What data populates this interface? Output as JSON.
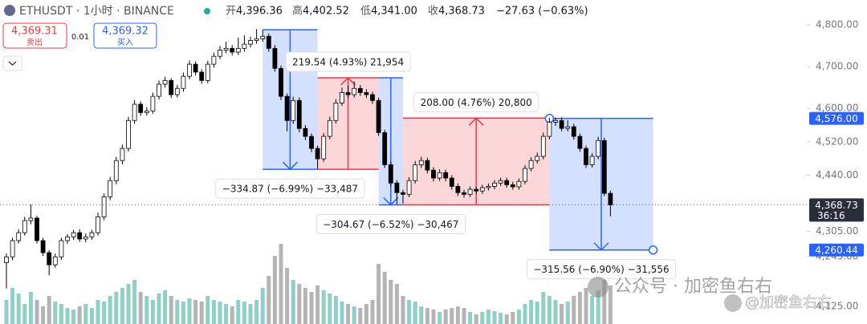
{
  "header": {
    "symbol": "ETHUSDT · 1小时 · BINANCE",
    "open_label": "开",
    "open": "4,396.36",
    "high_label": "高",
    "high": "4,402.52",
    "low_label": "低",
    "low": "4,341.00",
    "close_label": "收",
    "close": "4,368.73",
    "change": "−27.63 (−0.63%)"
  },
  "trade": {
    "sell_price": "4,369.31",
    "sell_label": "卖出",
    "size": "0.01",
    "buy_price": "4,369.32",
    "buy_label": "买入"
  },
  "watermark": {
    "channel": "公众号 · 加密鱼右右",
    "handle": "@加密鱼右右"
  },
  "chart_data": {
    "type": "candlestick",
    "colors": {
      "up_body": "#ffffff",
      "down_body": "#000000",
      "wick": "#000000",
      "up_volume": "#8fd0c5",
      "down_volume": "#b4b4b4"
    },
    "ylim": [
      4083,
      4860
    ],
    "yticks": [
      {
        "value": 4800,
        "label": "4,800.00"
      },
      {
        "value": 4700,
        "label": "4,700.00"
      },
      {
        "value": 4600,
        "label": "4,600.00"
      },
      {
        "value": 4520,
        "label": "4,520.00"
      },
      {
        "value": 4440,
        "label": "4,440.00"
      },
      {
        "value": 4305,
        "label": "4,305.00"
      },
      {
        "value": 4245,
        "label": "4,245.00"
      },
      {
        "value": 4125,
        "label": "4,125.00"
      }
    ],
    "open": [
      4230,
      4244,
      4283,
      4302,
      4331,
      4337,
      4283,
      4254,
      4225,
      4244,
      4283,
      4292,
      4302,
      4287,
      4292,
      4302,
      4340,
      4388,
      4427,
      4475,
      4504,
      4571,
      4610,
      4590,
      4594,
      4629,
      4658,
      4667,
      4633,
      4648,
      4677,
      4706,
      4687,
      4667,
      4706,
      4725,
      4740,
      4744,
      4735,
      4744,
      4754,
      4763,
      4767,
      4773,
      4744,
      4696,
      4629,
      4571,
      4619,
      4552,
      4533,
      4504,
      4479,
      4533,
      4571,
      4613,
      4638,
      4633,
      4648,
      4638,
      4633,
      4619,
      4542,
      4465,
      4421,
      4398,
      4394,
      4427,
      4465,
      4475,
      4452,
      4433,
      4446,
      4433,
      4413,
      4398,
      4394,
      4406,
      4402,
      4410,
      4413,
      4421,
      4427,
      4417,
      4412,
      4425,
      4456,
      4475,
      4485,
      4533,
      4567,
      4571,
      4552,
      4556,
      4533,
      4504,
      4465,
      4485,
      4523,
      4396.36
    ],
    "high": [
      4252,
      4290,
      4310,
      4340,
      4370,
      4343,
      4290,
      4260,
      4252,
      4290,
      4299,
      4309,
      4310,
      4300,
      4309,
      4350,
      4396,
      4436,
      4484,
      4513,
      4580,
      4620,
      4617,
      4603,
      4638,
      4667,
      4676,
      4673,
      4656,
      4686,
      4715,
      4713,
      4694,
      4714,
      4734,
      4750,
      4760,
      4752,
      4770,
      4775,
      4772,
      4790,
      4788,
      4780,
      4752,
      4703,
      4636,
      4628,
      4626,
      4560,
      4540,
      4511,
      4541,
      4580,
      4622,
      4650,
      4655,
      4665,
      4656,
      4646,
      4640,
      4626,
      4549,
      4472,
      4428,
      4405,
      4435,
      4474,
      4484,
      4482,
      4459,
      4454,
      4453,
      4440,
      4420,
      4405,
      4413,
      4412,
      4417,
      4420,
      4428,
      4434,
      4434,
      4424,
      4432,
      4464,
      4483,
      4494,
      4542,
      4577,
      4578,
      4578,
      4572,
      4563,
      4540,
      4511,
      4493,
      4532,
      4530,
      4402.52
    ],
    "low": [
      4168,
      4236,
      4276,
      4295,
      4322,
      4276,
      4246,
      4200,
      4218,
      4237,
      4275,
      4285,
      4280,
      4279,
      4285,
      4295,
      4332,
      4380,
      4418,
      4466,
      4497,
      4563,
      4582,
      4583,
      4587,
      4621,
      4650,
      4625,
      4626,
      4640,
      4670,
      4679,
      4659,
      4660,
      4698,
      4718,
      4732,
      4727,
      4728,
      4736,
      4746,
      4755,
      4760,
      4736,
      4688,
      4620,
      4545,
      4563,
      4543,
      4524,
      4495,
      4455,
      4472,
      4526,
      4564,
      4606,
      4625,
      4626,
      4630,
      4625,
      4611,
      4534,
      4457,
      4412,
      4370,
      4372,
      4387,
      4420,
      4457,
      4444,
      4425,
      4426,
      4425,
      4405,
      4390,
      4386,
      4387,
      4395,
      4395,
      4403,
      4406,
      4414,
      4410,
      4405,
      4405,
      4418,
      4449,
      4468,
      4478,
      4526,
      4558,
      4545,
      4545,
      4525,
      4496,
      4457,
      4458,
      4478,
      4390,
      4341
    ],
    "close": [
      4244,
      4283,
      4302,
      4331,
      4337,
      4283,
      4254,
      4225,
      4244,
      4283,
      4292,
      4302,
      4287,
      4292,
      4302,
      4340,
      4388,
      4427,
      4475,
      4504,
      4571,
      4610,
      4590,
      4594,
      4629,
      4658,
      4667,
      4633,
      4648,
      4677,
      4706,
      4687,
      4667,
      4706,
      4725,
      4740,
      4744,
      4735,
      4744,
      4754,
      4763,
      4767,
      4773,
      4744,
      4696,
      4629,
      4571,
      4619,
      4552,
      4533,
      4504,
      4479,
      4533,
      4571,
      4613,
      4638,
      4633,
      4648,
      4638,
      4633,
      4619,
      4542,
      4465,
      4421,
      4398,
      4394,
      4427,
      4465,
      4475,
      4452,
      4433,
      4446,
      4433,
      4413,
      4398,
      4394,
      4406,
      4402,
      4410,
      4413,
      4421,
      4427,
      4417,
      4412,
      4425,
      4456,
      4475,
      4485,
      4533,
      4567,
      4571,
      4552,
      4556,
      4533,
      4504,
      4465,
      4485,
      4523,
      4396.36,
      4368.73
    ],
    "volume": [
      30,
      45,
      38,
      25,
      40,
      30,
      22,
      35,
      28,
      25,
      20,
      18,
      22,
      25,
      20,
      30,
      28,
      35,
      40,
      45,
      50,
      55,
      40,
      35,
      30,
      38,
      42,
      35,
      30,
      28,
      32,
      30,
      28,
      35,
      30,
      28,
      25,
      22,
      30,
      28,
      25,
      30,
      45,
      60,
      85,
      100,
      70,
      55,
      50,
      45,
      40,
      48,
      42,
      38,
      35,
      28,
      25,
      22,
      20,
      25,
      30,
      75,
      65,
      55,
      50,
      35,
      30,
      28,
      22,
      20,
      18,
      15,
      18,
      20,
      22,
      20,
      15,
      12,
      15,
      18,
      16,
      14,
      12,
      15,
      18,
      25,
      30,
      28,
      40,
      35,
      30,
      25,
      28,
      35,
      40,
      45,
      35,
      42,
      55,
      48
    ],
    "vlim": [
      0,
      125
    ],
    "measures": [
      {
        "label": "−334.87 (−6.99%) −33,487",
        "from": 4788.7,
        "to": 4453.83,
        "start": 42,
        "end": 51
      },
      {
        "label": "219.54 (4.93%) 21,954",
        "from": 4453.83,
        "to": 4673.37,
        "start": 51,
        "end": 61
      },
      {
        "label": "−304.67 (−6.52%) −30,467",
        "from": 4673.37,
        "to": 4368.7,
        "start": 61,
        "end": 65
      },
      {
        "label": "208.00 (4.76%) 20,800",
        "from": 4368.7,
        "to": 4576.7,
        "start": 65,
        "end": 89
      },
      {
        "label": "−315.56 (−6.90%) −31,556",
        "from": 4576,
        "to": 4260.44,
        "start": 89,
        "end": 106,
        "selected": true
      }
    ],
    "price_labels": [
      {
        "value": 4576,
        "label": "4,576.00"
      },
      {
        "value": 4260.44,
        "label": "4,260.44"
      }
    ],
    "last_price": {
      "value": 4368.73,
      "label": "4,368.73",
      "countdown": "36:16"
    }
  }
}
